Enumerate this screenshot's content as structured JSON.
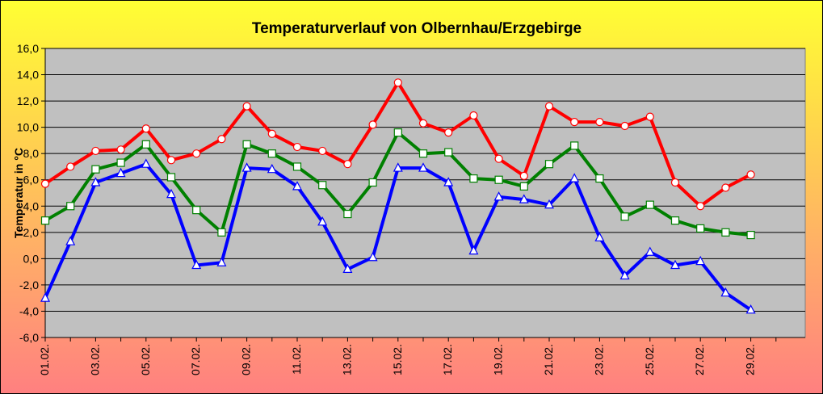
{
  "colors": {
    "background_top": "#ffff33",
    "background_bottom": "#ff8080",
    "plot_area": "#c0c0c0",
    "max_series": "#ff0000",
    "mean_series": "#008000",
    "min_series": "#0000ff"
  },
  "chart_data": {
    "type": "line",
    "title": "Temperaturverlauf von Olbernhau/Erzgebirge",
    "ylabel": "Temperatur in °C",
    "xlabel": "",
    "ylim": [
      -6,
      16
    ],
    "y_ticks": [
      "-6,0",
      "-4,0",
      "-2,0",
      "0,0",
      "2,0",
      "4,0",
      "6,0",
      "8,0",
      "10,0",
      "12,0",
      "14,0",
      "16,0"
    ],
    "y_tick_values": [
      -6,
      -4,
      -2,
      0,
      2,
      4,
      6,
      8,
      10,
      12,
      14,
      16
    ],
    "x_tick_labels": [
      "01.02.",
      "03.02.",
      "05.02.",
      "07.02.",
      "09.02.",
      "11.02.",
      "13.02.",
      "15.02.",
      "17.02.",
      "19.02.",
      "21.02.",
      "23.02.",
      "25.02.",
      "27.02.",
      "29.02."
    ],
    "x_tick_days": [
      1,
      3,
      5,
      7,
      9,
      11,
      13,
      15,
      17,
      19,
      21,
      23,
      25,
      27,
      29
    ],
    "x_range": [
      1,
      30
    ],
    "grid": true,
    "legend": "none",
    "x": [
      1,
      2,
      3,
      4,
      5,
      6,
      7,
      8,
      9,
      10,
      11,
      12,
      13,
      14,
      15,
      16,
      17,
      18,
      19,
      20,
      21,
      22,
      23,
      24,
      25,
      26,
      27,
      28,
      29
    ],
    "series": [
      {
        "color": "#ff0000",
        "marker": "circle",
        "values": [
          5.7,
          7.0,
          8.2,
          8.3,
          9.9,
          7.5,
          8.0,
          9.1,
          11.6,
          9.5,
          8.5,
          8.2,
          7.2,
          10.2,
          13.4,
          10.3,
          9.6,
          10.9,
          7.6,
          6.3,
          11.6,
          10.4,
          10.4,
          10.1,
          10.8,
          5.8,
          4.0,
          5.4,
          6.4
        ]
      },
      {
        "color": "#008000",
        "marker": "square",
        "values": [
          2.9,
          4.0,
          6.8,
          7.3,
          8.7,
          6.2,
          3.7,
          2.0,
          8.7,
          8.0,
          7.0,
          5.6,
          3.4,
          5.8,
          9.6,
          8.0,
          8.1,
          6.1,
          6.0,
          5.5,
          7.2,
          8.6,
          6.1,
          3.2,
          4.1,
          2.9,
          2.3,
          2.0,
          1.8
        ]
      },
      {
        "color": "#0000ff",
        "marker": "triangle",
        "values": [
          -3.0,
          1.3,
          5.8,
          6.5,
          7.2,
          4.9,
          -0.5,
          -0.3,
          6.9,
          6.8,
          5.5,
          2.8,
          -0.8,
          0.1,
          6.9,
          6.9,
          5.8,
          0.6,
          4.7,
          4.5,
          4.1,
          6.1,
          1.6,
          -1.3,
          0.5,
          -0.5,
          -0.2,
          -2.6,
          -3.9
        ]
      }
    ]
  }
}
